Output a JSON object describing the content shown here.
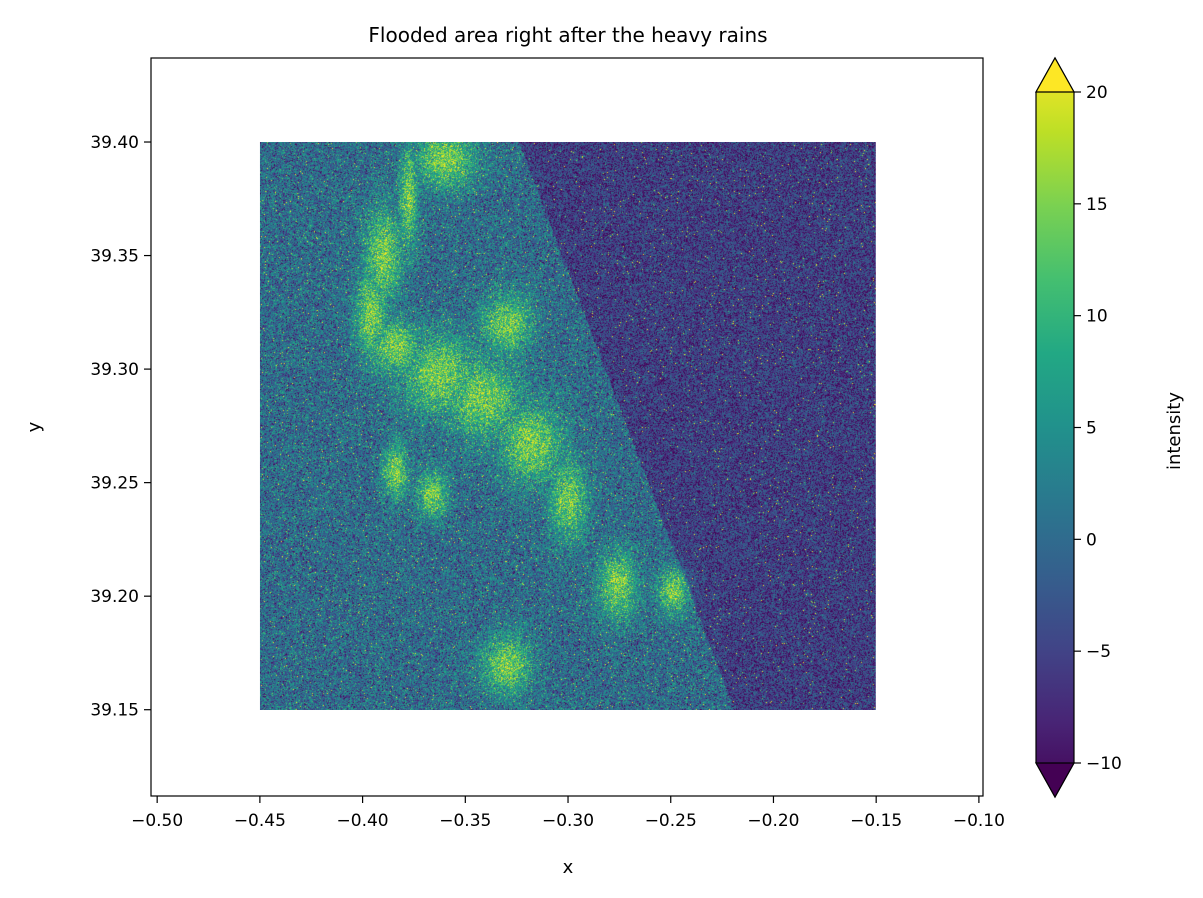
{
  "chart_data": {
    "type": "heatmap",
    "title": "Flooded area right after the heavy rains",
    "xlabel": "x",
    "ylabel": "y",
    "xlim": [
      -0.503,
      -0.098
    ],
    "ylim": [
      39.112,
      39.437
    ],
    "data_extent": {
      "x": [
        -0.45,
        -0.15
      ],
      "y": [
        39.15,
        39.4
      ]
    },
    "x_ticks": [
      -0.5,
      -0.45,
      -0.4,
      -0.35,
      -0.3,
      -0.25,
      -0.2,
      -0.15,
      -0.1
    ],
    "x_tick_labels": [
      "−0.50",
      "−0.45",
      "−0.40",
      "−0.35",
      "−0.30",
      "−0.25",
      "−0.20",
      "−0.15",
      "−0.10"
    ],
    "y_ticks": [
      39.15,
      39.2,
      39.25,
      39.3,
      39.35,
      39.4
    ],
    "y_tick_labels": [
      "39.15",
      "39.20",
      "39.25",
      "39.30",
      "39.35",
      "39.40"
    ],
    "grid": false,
    "colorbar": {
      "label": "intensity",
      "colormap": "viridis",
      "range": [
        -10,
        20
      ],
      "extend": "both",
      "ticks": [
        -10,
        -5,
        0,
        5,
        10,
        15,
        20
      ],
      "tick_labels": [
        "−10",
        "−5",
        "0",
        "5",
        "10",
        "15",
        "20"
      ]
    }
  }
}
